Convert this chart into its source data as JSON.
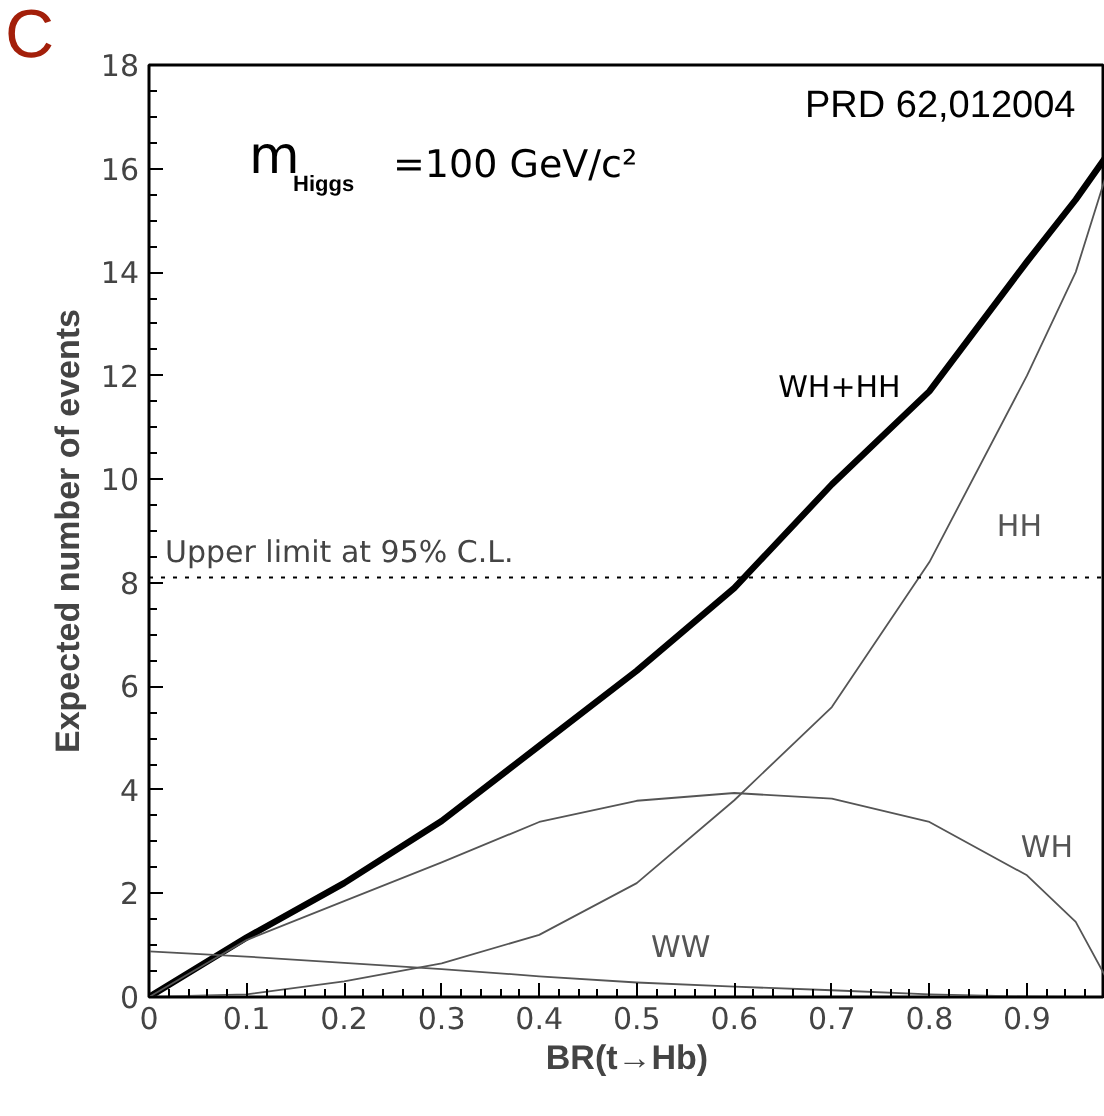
{
  "chart_data": {
    "type": "line",
    "xlabel": "BR(t→Hb)",
    "ylabel": "Expected number of events",
    "x": [
      0,
      0.1,
      0.2,
      0.3,
      0.4,
      0.5,
      0.6,
      0.7,
      0.8,
      0.9,
      0.95,
      0.98
    ],
    "series": [
      {
        "name": "WH+HH",
        "color": "#000000",
        "values": [
          0,
          1.15,
          2.2,
          3.4,
          4.85,
          6.3,
          7.9,
          9.9,
          11.7,
          14.2,
          15.4,
          16.2
        ]
      },
      {
        "name": "HH",
        "color": "#555555",
        "values": [
          0,
          0.05,
          0.3,
          0.65,
          1.2,
          2.2,
          3.8,
          5.6,
          8.4,
          12.0,
          14.0,
          15.8
        ]
      },
      {
        "name": "WH",
        "color": "#555555",
        "values": [
          0,
          1.1,
          1.85,
          2.6,
          3.38,
          3.79,
          3.94,
          3.83,
          3.38,
          2.35,
          1.45,
          0.41
        ]
      },
      {
        "name": "WW",
        "color": "#555555",
        "values": [
          0.88,
          0.78,
          0.66,
          0.54,
          0.4,
          0.28,
          0.2,
          0.13,
          0.05,
          0.01,
          0.0,
          0.0
        ]
      }
    ],
    "xlim": [
      0,
      0.98
    ],
    "xticks": [
      0,
      0.1,
      0.2,
      0.3,
      0.4,
      0.5,
      0.6,
      0.7,
      0.8,
      0.9
    ],
    "ylim": [
      0,
      18
    ],
    "yticks": [
      0,
      2,
      4,
      6,
      8,
      10,
      12,
      14,
      16,
      18
    ],
    "ref_lines": [
      {
        "axis": "y",
        "value": 8.1,
        "label": "Upper limit at 95% C.L.",
        "line_style": "dotted",
        "color": "#000000"
      }
    ],
    "annotations": [
      "C",
      "PRD 62,012004",
      "m$_{Higgs}$ =100 GeV/c²"
    ],
    "grid": false,
    "legend": false,
    "marker": "none",
    "line_style": "solid"
  }
}
